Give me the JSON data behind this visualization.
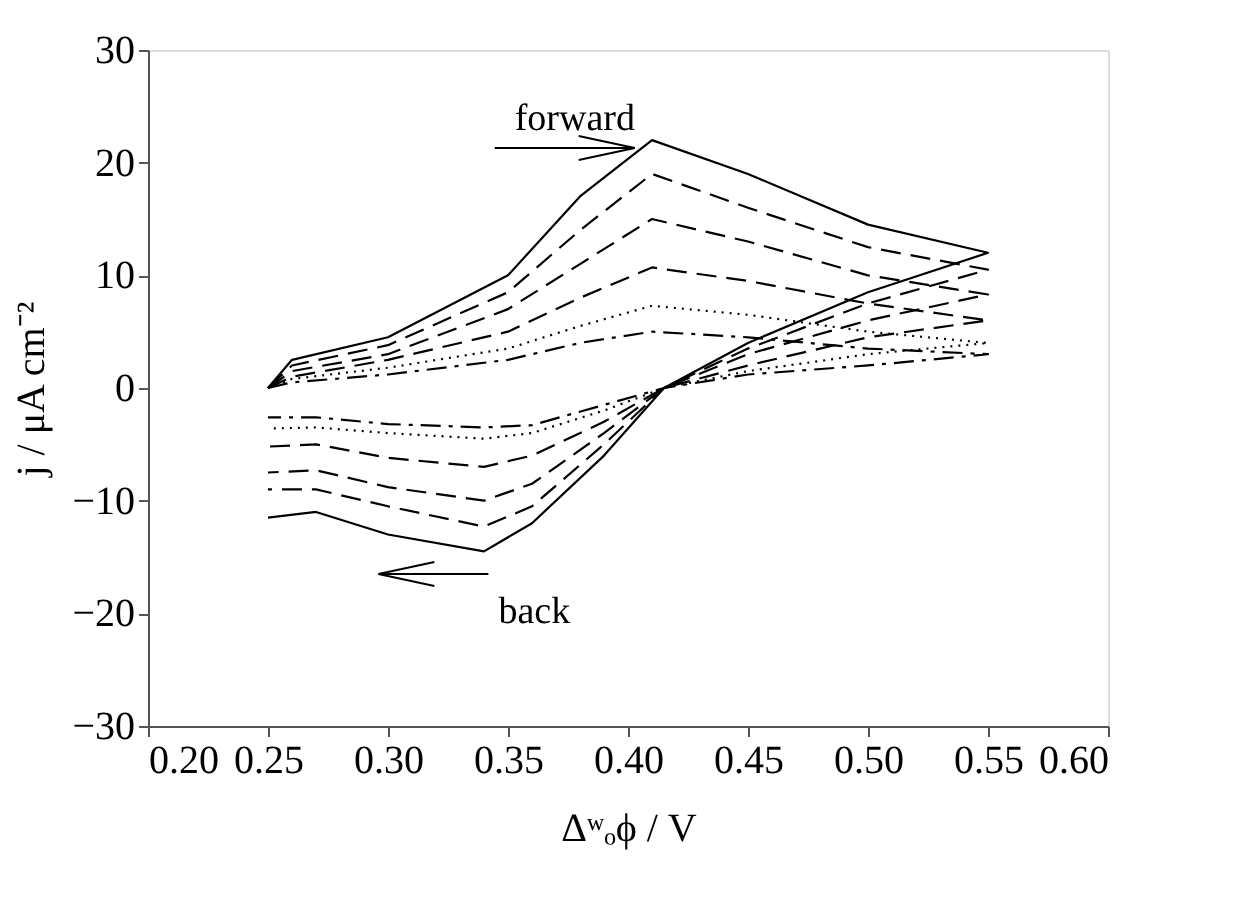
{
  "chart_data": {
    "type": "line",
    "xlabel": "Δʷₒϕ / V",
    "ylabel": "j / μA cm⁻²",
    "x": [
      0.25,
      0.26,
      0.3,
      0.35,
      0.38,
      0.41,
      0.45,
      0.5,
      0.55,
      0.5,
      0.45,
      0.415,
      0.39,
      0.36,
      0.34,
      0.3,
      0.27,
      0.25
    ],
    "series": [
      {
        "color": "#000000",
        "line_style": "solid",
        "values": [
          0,
          2.5,
          4.5,
          10,
          17,
          22,
          19,
          14.5,
          12,
          8.5,
          4,
          0,
          -6,
          -12,
          -14.5,
          -13,
          -11,
          -11.5
        ]
      },
      {
        "color": "#000000",
        "line_style": "dashed",
        "values": [
          0,
          2,
          3.8,
          8.5,
          14,
          19,
          16,
          12.5,
          10.5,
          7.5,
          3.5,
          0,
          -5,
          -10.5,
          -12.3,
          -10.5,
          -9,
          -9
        ]
      },
      {
        "color": "#000000",
        "line_style": "dashed",
        "values": [
          0,
          1.5,
          3,
          7,
          11,
          15,
          13,
          10,
          8.3,
          6,
          3,
          0,
          -4,
          -8.5,
          -10,
          -8.8,
          -7.3,
          -7.5
        ]
      },
      {
        "color": "#000000",
        "line_style": "dashed",
        "values": [
          0,
          1,
          2.5,
          5,
          8,
          10.7,
          9.5,
          7.5,
          6,
          4.5,
          2,
          0,
          -3,
          -6,
          -7,
          -6.2,
          -5,
          -5.2
        ]
      },
      {
        "color": "#000000",
        "line_style": "dotted",
        "values": [
          0,
          0.8,
          1.8,
          3.5,
          5.5,
          7.3,
          6.5,
          5,
          4,
          3,
          1.5,
          0,
          -2,
          -4,
          -4.5,
          -4,
          -3.5,
          -3.6
        ]
      },
      {
        "color": "#000000",
        "line_style": "dashdot",
        "values": [
          0,
          0.5,
          1.2,
          2.5,
          4,
          5,
          4.5,
          3.5,
          3,
          2,
          1.2,
          0,
          -1.5,
          -3.3,
          -3.5,
          -3.2,
          -2.6,
          -2.6
        ]
      }
    ],
    "annotations": [
      "forward",
      "back"
    ],
    "xlim": [
      0.2,
      0.6
    ],
    "xticks": [
      {
        "value": 0.2,
        "label": "0.20"
      },
      0.25,
      {
        "value": 0.3,
        "label": "0.30"
      },
      0.35,
      {
        "value": 0.4,
        "label": "0.40"
      },
      0.45,
      {
        "value": 0.5,
        "label": "0.50"
      },
      0.55,
      {
        "value": 0.6,
        "label": "0.60"
      }
    ],
    "ylim": [
      -30,
      30
    ],
    "yticks": [
      -30,
      -20,
      -10,
      0,
      10,
      20,
      30
    ],
    "grid": false,
    "marker": "none"
  }
}
